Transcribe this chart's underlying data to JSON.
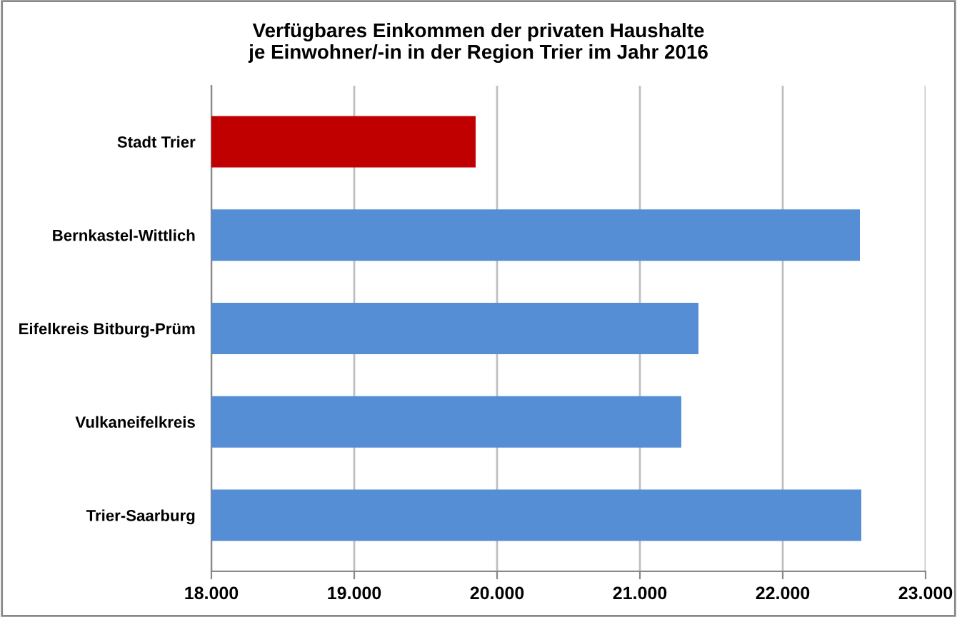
{
  "chart_data": {
    "type": "bar",
    "orientation": "horizontal",
    "title": "Verfügbares Einkommen der privaten Haushalte\nje Einwohner/-in in der Region Trier im Jahr 2016",
    "categories": [
      "Stadt Trier",
      "Bernkastel-Wittlich",
      "Eifelkreis Bitburg-Prüm",
      "Vulkaneifelkreis",
      "Trier-Saarburg"
    ],
    "values": [
      19850,
      22540,
      21410,
      21290,
      22550
    ],
    "colors": [
      "#c00000",
      "#558ed5",
      "#558ed5",
      "#558ed5",
      "#558ed5"
    ],
    "xlim": [
      18000,
      23000
    ],
    "xticks": [
      {
        "value": 18000,
        "label": "18.000"
      },
      {
        "value": 19000,
        "label": "19.000"
      },
      {
        "value": 20000,
        "label": "20.000"
      },
      {
        "value": 21000,
        "label": "21.000"
      },
      {
        "value": 22000,
        "label": "22.000"
      },
      {
        "value": 23000,
        "label": "23.000"
      }
    ],
    "grid": "x"
  }
}
